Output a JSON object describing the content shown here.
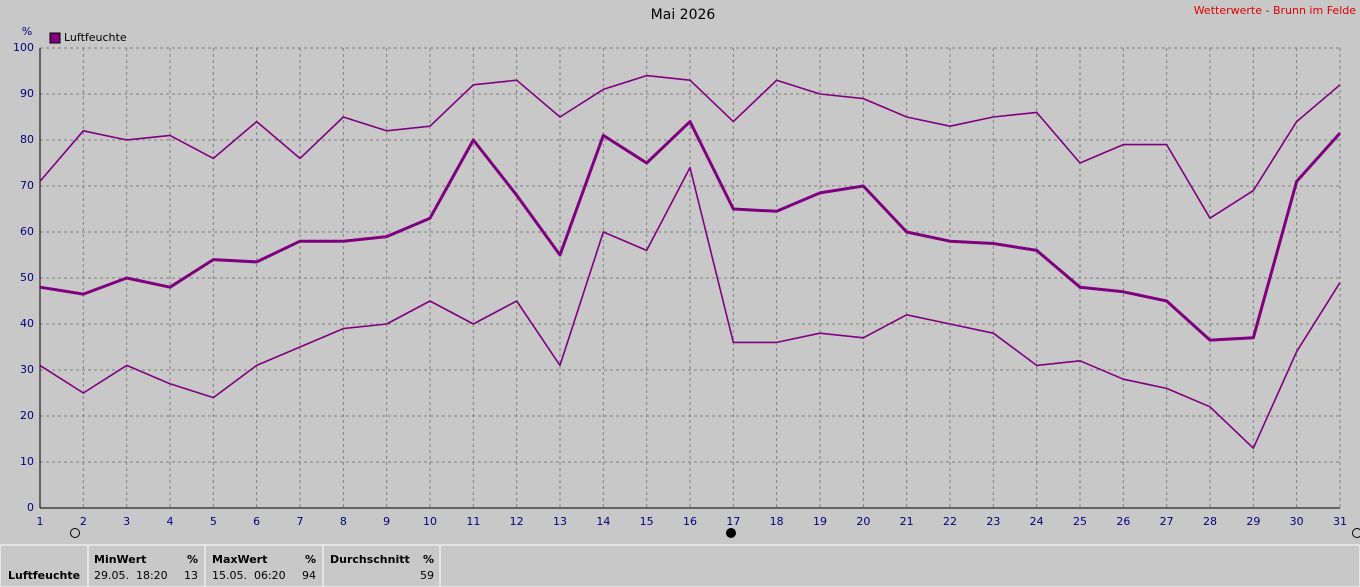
{
  "chart_data": {
    "type": "line",
    "title": "Mai 2026",
    "source": "Wetterwerte - Brunn im Felde",
    "y_label": "%",
    "legend": {
      "name": "Luftfeuchte",
      "color": "#800080"
    },
    "x": [
      1,
      2,
      3,
      4,
      5,
      6,
      7,
      8,
      9,
      10,
      11,
      12,
      13,
      14,
      15,
      16,
      17,
      18,
      19,
      20,
      21,
      22,
      23,
      24,
      25,
      26,
      27,
      28,
      29,
      30,
      31
    ],
    "series": [
      {
        "color": "#800080",
        "values": [
          71,
          82,
          80,
          81,
          76,
          84,
          76,
          85,
          82,
          83,
          92,
          93,
          85,
          91,
          94,
          93,
          84,
          93,
          90,
          89,
          85,
          83,
          85,
          86,
          75,
          79,
          79,
          63,
          69,
          84,
          92
        ]
      },
      {
        "color": "#800080",
        "values": [
          48,
          46.5,
          50,
          48,
          54,
          53.5,
          58,
          58,
          59,
          63,
          80,
          68,
          55,
          81,
          75,
          84,
          65,
          64.5,
          68.5,
          70,
          60,
          58,
          57.5,
          56,
          48,
          47,
          45,
          36.5,
          37,
          71,
          81.5
        ]
      },
      {
        "color": "#800080",
        "values": [
          31,
          25,
          31,
          27,
          24,
          31,
          35,
          39,
          40,
          45,
          40,
          45,
          31,
          60,
          56,
          74,
          36,
          36,
          38,
          37,
          42,
          40,
          38,
          31,
          32,
          28,
          26,
          22,
          13,
          34,
          49
        ]
      }
    ],
    "xlim": [
      1,
      31
    ],
    "xticks": [
      1,
      2,
      3,
      4,
      5,
      6,
      7,
      8,
      9,
      10,
      11,
      12,
      13,
      14,
      15,
      16,
      17,
      18,
      19,
      20,
      21,
      22,
      23,
      24,
      25,
      26,
      27,
      28,
      29,
      30,
      31
    ],
    "ylim": [
      0,
      100
    ],
    "yticks": [
      0,
      10,
      20,
      30,
      40,
      50,
      60,
      70,
      80,
      90,
      100
    ],
    "grid": true
  },
  "table": {
    "row_label": "Luftfeuchte",
    "columns": [
      {
        "header": "MinWert",
        "unit": "%",
        "time": "29.05.  18:20",
        "value": 13
      },
      {
        "header": "MaxWert",
        "unit": "%",
        "time": "15.05.  06:20",
        "value": 94
      },
      {
        "header": "Durchschnitt",
        "unit": "%",
        "value": 59
      }
    ]
  }
}
